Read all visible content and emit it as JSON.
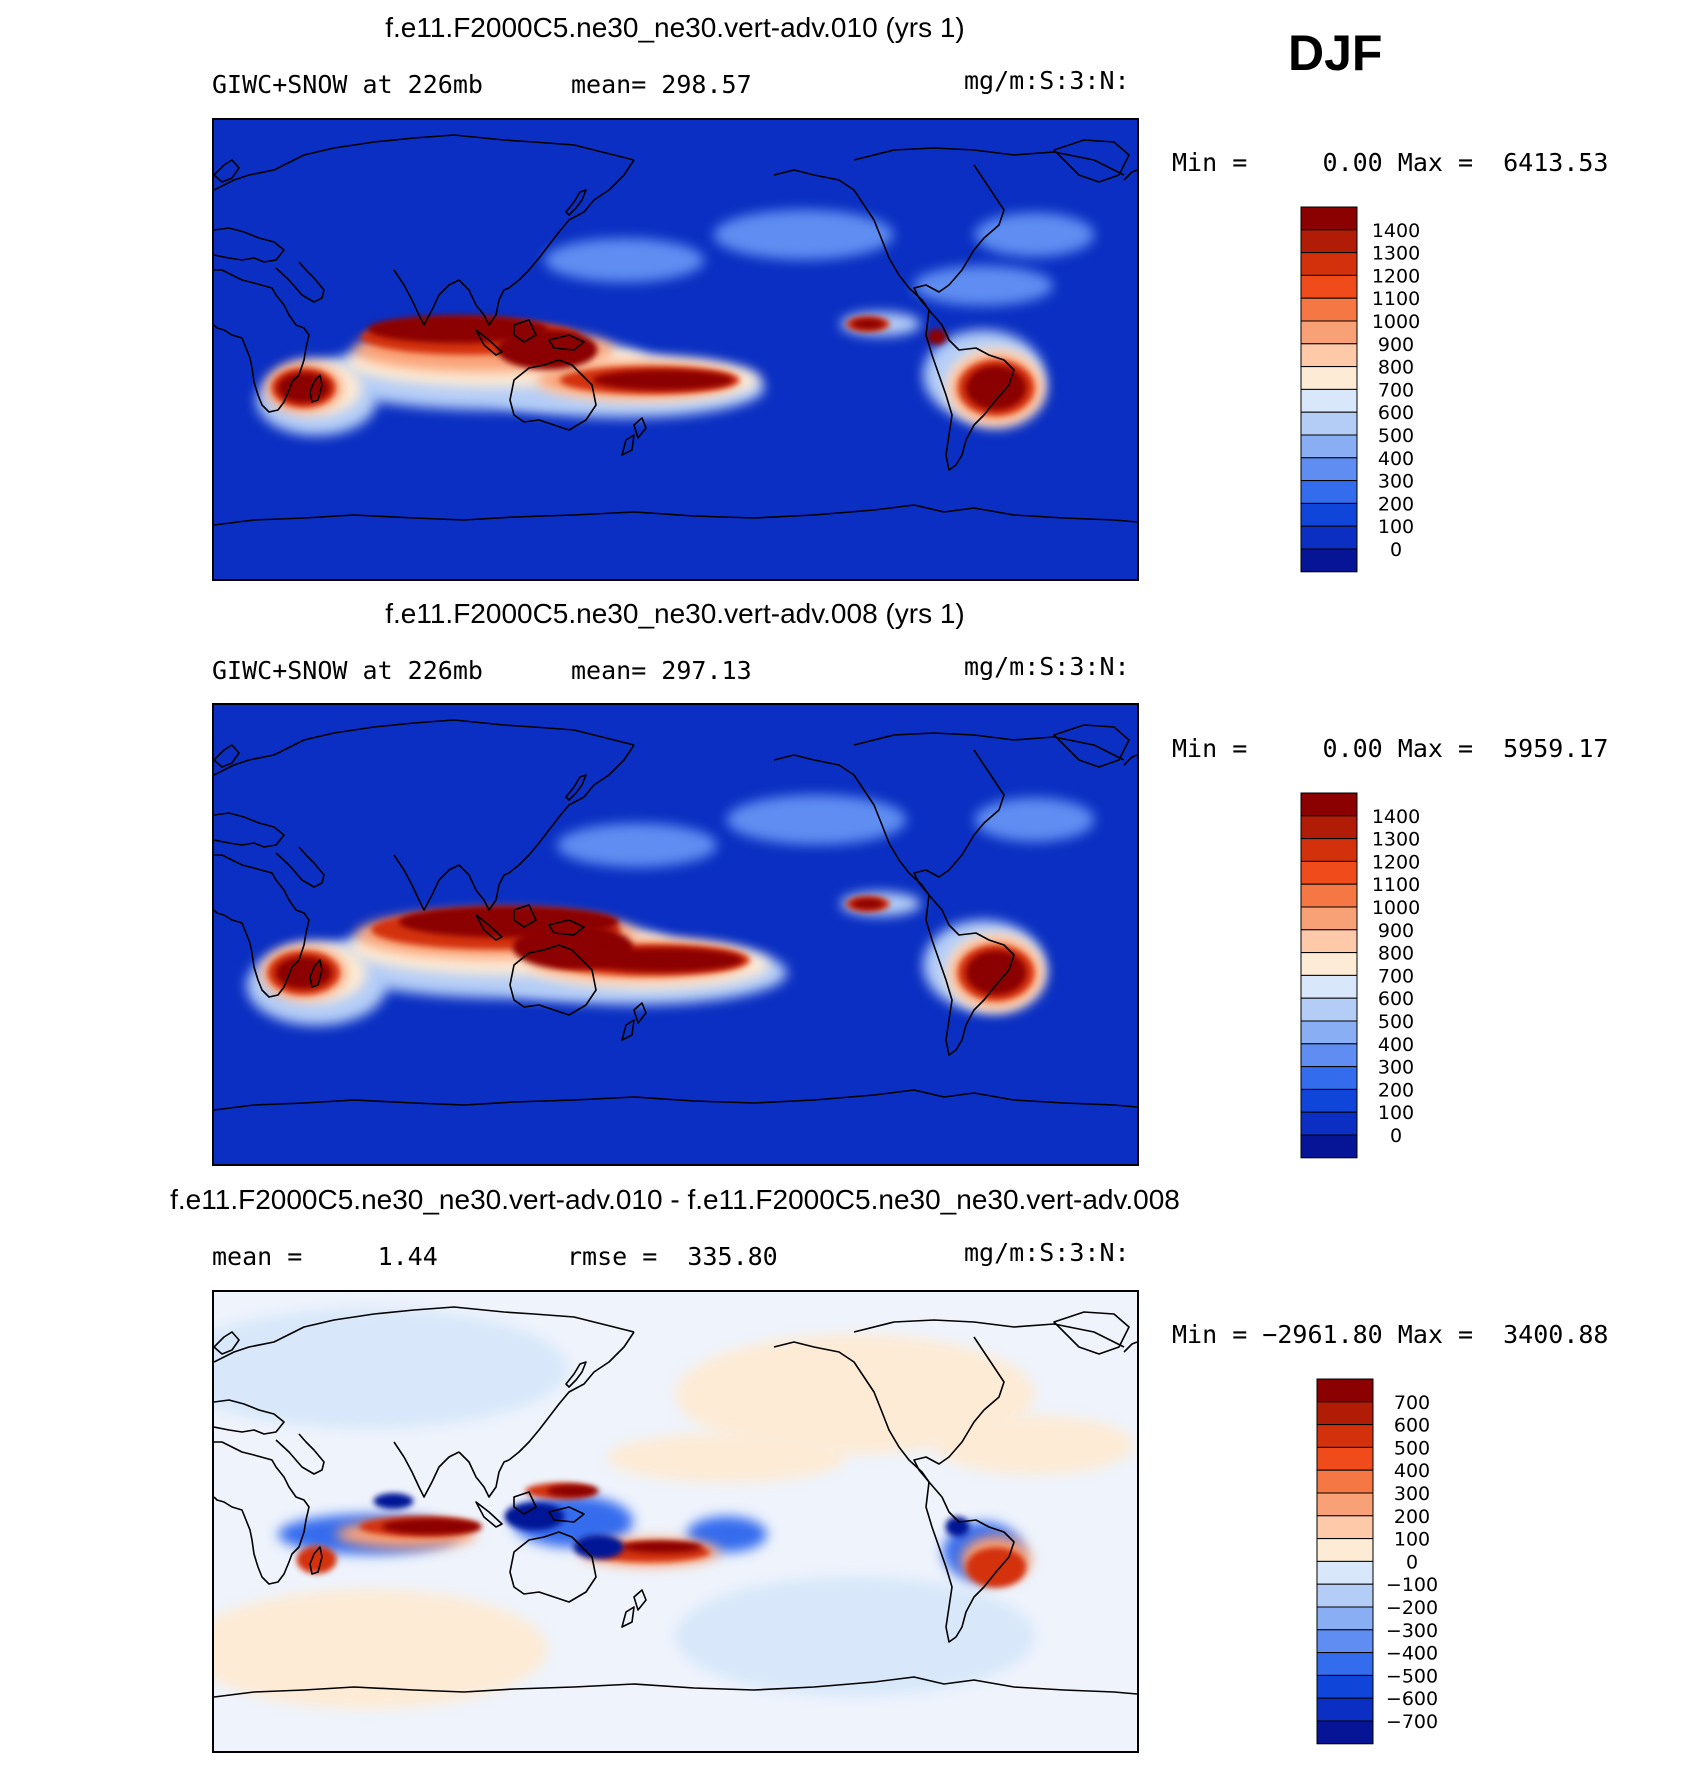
{
  "season_label": "DJF",
  "colors": {
    "ocean_bg": "#0a2fc2",
    "coast": "#000000"
  },
  "chart_data": [
    {
      "type": "heatmap",
      "title": "f.e11.F2000C5.ne30_ne30.vert-adv.010 (yrs 1)",
      "variable": "GIWC+SNOW at 226mb",
      "stat_text": "mean= 298.57",
      "units": "mg/m:S:3:N:",
      "minmax_text": "Min =     0.00 Max =  6413.53",
      "min": 0.0,
      "max": 6413.53,
      "mean": 298.57,
      "colorbar_levels": [
        "1400",
        "1300",
        "1200",
        "1100",
        "1000",
        "900",
        "800",
        "700",
        "600",
        "500",
        "400",
        "300",
        "200",
        "100",
        "0"
      ],
      "colorbar_colors": [
        "#8b0000",
        "#b01c06",
        "#d3300c",
        "#f04b1a",
        "#f57844",
        "#f9a176",
        "#fdc9a9",
        "#fdebd6",
        "#d8e8fa",
        "#b4cdf7",
        "#8aaef4",
        "#5f8df1",
        "#346cee",
        "#0f45d9",
        "#0a2fc2",
        "#061596"
      ],
      "grid": false
    },
    {
      "type": "heatmap",
      "title": "f.e11.F2000C5.ne30_ne30.vert-adv.008 (yrs 1)",
      "variable": "GIWC+SNOW at 226mb",
      "stat_text": "mean= 297.13",
      "units": "mg/m:S:3:N:",
      "minmax_text": "Min =     0.00 Max =  5959.17",
      "min": 0.0,
      "max": 5959.17,
      "mean": 297.13,
      "colorbar_levels": [
        "1400",
        "1300",
        "1200",
        "1100",
        "1000",
        "900",
        "800",
        "700",
        "600",
        "500",
        "400",
        "300",
        "200",
        "100",
        "0"
      ],
      "colorbar_colors": [
        "#8b0000",
        "#b01c06",
        "#d3300c",
        "#f04b1a",
        "#f57844",
        "#f9a176",
        "#fdc9a9",
        "#fdebd6",
        "#d8e8fa",
        "#b4cdf7",
        "#8aaef4",
        "#5f8df1",
        "#346cee",
        "#0f45d9",
        "#0a2fc2",
        "#061596"
      ],
      "grid": false
    },
    {
      "type": "heatmap",
      "title": "f.e11.F2000C5.ne30_ne30.vert-adv.010 - f.e11.F2000C5.ne30_ne30.vert-adv.008",
      "stat_text": "mean =     1.44",
      "rmse_text": "rmse =  335.80",
      "units": "mg/m:S:3:N:",
      "minmax_text": "Min = −2961.80 Max =  3400.88",
      "min": -2961.8,
      "max": 3400.88,
      "mean": 1.44,
      "rmse": 335.8,
      "colorbar_levels": [
        "700",
        "600",
        "500",
        "400",
        "300",
        "200",
        "100",
        "0",
        "−100",
        "−200",
        "−300",
        "−400",
        "−500",
        "−600",
        "−700"
      ],
      "colorbar_colors": [
        "#8b0000",
        "#b01c06",
        "#d3300c",
        "#f04b1a",
        "#f57844",
        "#f9a176",
        "#fdc9a9",
        "#fdebd6",
        "#d8e8fa",
        "#b4cdf7",
        "#8aaef4",
        "#5f8df1",
        "#346cee",
        "#0f45d9",
        "#0a2fc2",
        "#061596"
      ],
      "grid": false
    }
  ]
}
